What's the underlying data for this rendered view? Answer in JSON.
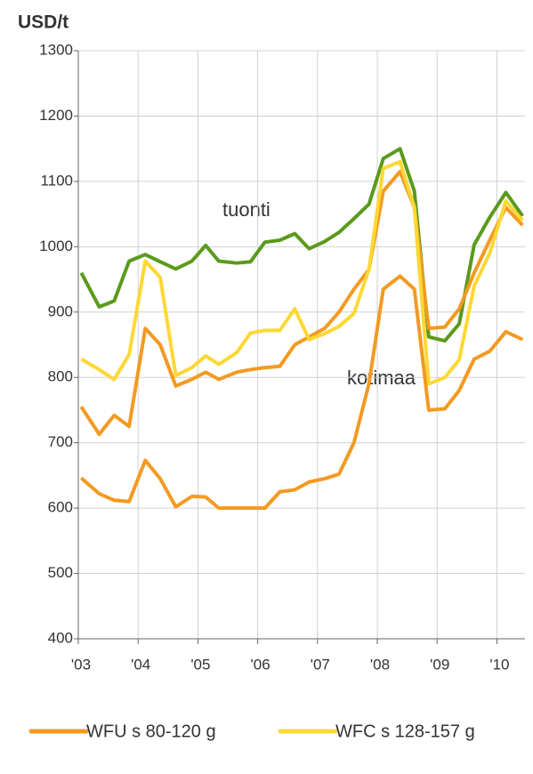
{
  "chart_data": {
    "type": "line",
    "title": "USD/t",
    "x": [
      2003.05,
      2003.35,
      2003.6,
      2003.85,
      2004.12,
      2004.37,
      2004.63,
      2004.9,
      2005.13,
      2005.35,
      2005.65,
      2005.88,
      2006.12,
      2006.37,
      2006.62,
      2006.86,
      2007.12,
      2007.36,
      2007.61,
      2007.86,
      2008.1,
      2008.38,
      2008.62,
      2008.86,
      2009.13,
      2009.37,
      2009.62,
      2009.88,
      2010.15,
      2010.43
    ],
    "series": [
      {
        "color": "#5a9a1c",
        "values": [
          960,
          908,
          917,
          978,
          988,
          977,
          966,
          978,
          1002,
          978,
          975,
          977,
          1007,
          1010,
          1020,
          997,
          1008,
          1022,
          1043,
          1065,
          1135,
          1150,
          1085,
          862,
          856,
          882,
          1003,
          1045,
          1083,
          1047
        ]
      },
      {
        "name": "WFU s 80-120 g",
        "color": "#f39a21",
        "values": [
          755,
          713,
          742,
          725,
          875,
          850,
          787,
          797,
          808,
          797,
          808,
          812,
          815,
          817,
          850,
          862,
          875,
          900,
          935,
          965,
          1085,
          1115,
          1060,
          875,
          877,
          905,
          960,
          1010,
          1060,
          1033
        ]
      },
      {
        "name": "WFC s 128-157 g",
        "color": "#fdd835",
        "values": [
          828,
          812,
          797,
          835,
          978,
          953,
          803,
          815,
          833,
          820,
          838,
          868,
          872,
          872,
          905,
          858,
          867,
          878,
          898,
          965,
          1120,
          1130,
          1060,
          790,
          800,
          827,
          940,
          990,
          1070,
          1040
        ]
      },
      {
        "color": "#f39a21",
        "values": [
          646,
          622,
          612,
          610,
          673,
          645,
          602,
          618,
          617,
          600,
          600,
          600,
          600,
          625,
          628,
          640,
          645,
          652,
          700,
          790,
          935,
          955,
          935,
          750,
          752,
          780,
          828,
          840,
          870,
          858
        ]
      }
    ],
    "annotations": [
      "tuonti",
      "kotimaa"
    ],
    "xlim": [
      2003,
      2010.47
    ],
    "xticks": [
      {
        "value": 2003,
        "label": "'03"
      },
      {
        "value": 2004,
        "label": "'04"
      },
      {
        "value": 2005,
        "label": "'05"
      },
      {
        "value": 2006,
        "label": "'06"
      },
      {
        "value": 2007,
        "label": "'07"
      },
      {
        "value": 2008,
        "label": "'08"
      },
      {
        "value": 2009,
        "label": "'09"
      },
      {
        "value": 2010,
        "label": "'10"
      }
    ],
    "ylim": [
      400,
      1300
    ],
    "yticks": [
      400,
      500,
      600,
      700,
      800,
      900,
      1000,
      1100,
      1200,
      1300
    ],
    "grid": true
  }
}
